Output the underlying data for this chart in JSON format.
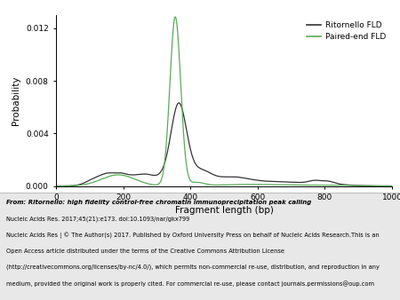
{
  "title": "",
  "xlabel": "Fragment length (bp)",
  "ylabel": "Probability",
  "xlim": [
    0,
    1000
  ],
  "ylim": [
    0,
    0.013
  ],
  "yticks": [
    0.0,
    0.004,
    0.008,
    0.012
  ],
  "xticks": [
    0,
    200,
    400,
    600,
    800,
    1000
  ],
  "ritornello_color": "#333333",
  "paired_end_color": "#5aab5a",
  "legend_labels": [
    "Ritornello FLD",
    "Paired-end FLD"
  ],
  "caption_line0": "From: Ritornello: high fidelity control-free chromatin immunoprecipitation peak calling",
  "caption_line1": "Nucleic Acids Res. 2017;45(21):e173. doi:10.1093/nar/gkx799",
  "caption_line2": "Nucleic Acids Res | © The Author(s) 2017. Published by Oxford University Press on behalf of Nucleic Acids Research.This is an",
  "caption_line3": "Open Access article distributed under the terms of the Creative Commons Attribution License",
  "caption_line4": "(http://creativecommons.org/licenses/by-nc/4.0/), which permits non-commercial re-use, distribution, and reproduction in any",
  "caption_line5": "medium, provided the original work is properly cited. For commercial re-use, please contact journals.permissions@oup.com",
  "caption_bg_color": "#e8e8e8",
  "fig_bg_color": "#ffffff"
}
